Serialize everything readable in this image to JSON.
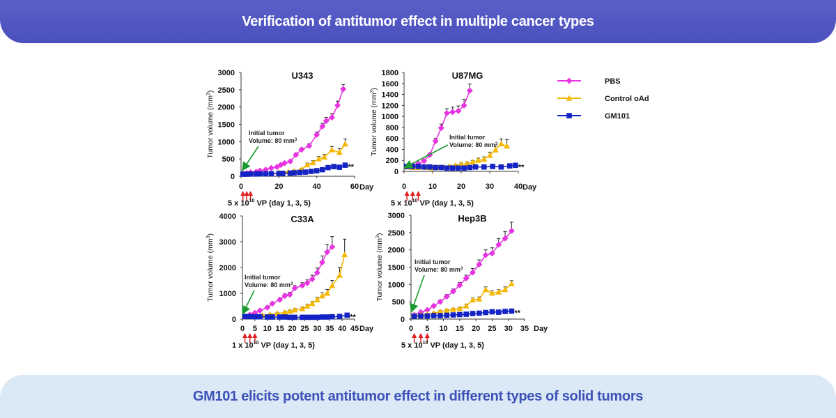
{
  "header": {
    "title": "Verification of antitumor effect in multiple cancer types"
  },
  "footer": {
    "title": "GM101 elicits potent antitumor effect in different types of solid tumors"
  },
  "legend": [
    {
      "name": "PBS",
      "color": "#e635e0",
      "marker": "diamond"
    },
    {
      "name": "Control oAd",
      "color": "#f5b800",
      "marker": "triangle"
    },
    {
      "name": "GM101",
      "color": "#1323c4",
      "marker": "square"
    }
  ],
  "colors": {
    "pbs": "#e635e0",
    "control": "#f5b800",
    "gm101": "#1323c4",
    "arrow": "#e02020",
    "annotation": "#1a9a30"
  },
  "chart_data": [
    {
      "type": "line",
      "title": "U343",
      "ylabel": "Tumor volume (mm3)",
      "xlabel": "Day",
      "ylim": [
        0,
        3000
      ],
      "yticks": [
        0,
        500,
        1000,
        1500,
        2000,
        2500,
        3000
      ],
      "xlim": [
        0,
        60
      ],
      "xticks": [
        0,
        20,
        40,
        60
      ],
      "annotation": {
        "line1": "Initial tumor",
        "line2": "Volume: 80 mm",
        "sup": "3"
      },
      "dosing": {
        "prefix": "5 x 10",
        "sup": "10",
        "suffix": " VP (day 1, 3, 5)",
        "days": [
          1,
          3,
          5
        ]
      },
      "significance": "**",
      "series": [
        {
          "name": "PBS",
          "x": [
            1,
            3,
            5,
            8,
            10,
            13,
            16,
            19,
            21,
            23,
            26,
            29,
            32,
            36,
            40,
            43,
            45,
            48,
            51,
            54
          ],
          "values": [
            80,
            90,
            110,
            130,
            160,
            190,
            240,
            270,
            330,
            380,
            430,
            620,
            770,
            880,
            1200,
            1440,
            1600,
            1700,
            2050,
            2520
          ],
          "err": [
            10,
            10,
            12,
            15,
            18,
            20,
            25,
            25,
            30,
            30,
            35,
            40,
            50,
            60,
            80,
            90,
            100,
            110,
            120,
            130
          ]
        },
        {
          "name": "Control oAd",
          "x": [
            20,
            25,
            28,
            32,
            35,
            38,
            41,
            44,
            48,
            52,
            55
          ],
          "values": [
            110,
            130,
            150,
            200,
            330,
            390,
            500,
            550,
            760,
            690,
            930
          ],
          "err": [
            20,
            20,
            25,
            30,
            50,
            60,
            70,
            80,
            100,
            110,
            150
          ]
        },
        {
          "name": "GM101",
          "x": [
            1,
            3,
            5,
            8,
            10,
            13,
            16,
            20,
            22,
            26,
            28,
            31,
            34,
            37,
            40,
            43,
            46,
            49,
            52,
            55
          ],
          "values": [
            60,
            60,
            65,
            65,
            70,
            70,
            75,
            80,
            85,
            90,
            100,
            110,
            120,
            140,
            160,
            190,
            250,
            280,
            260,
            320
          ],
          "err": [
            8,
            8,
            8,
            8,
            10,
            10,
            10,
            10,
            12,
            12,
            15,
            15,
            18,
            20,
            22,
            25,
            30,
            35,
            30,
            40
          ]
        }
      ]
    },
    {
      "type": "line",
      "title": "U87MG",
      "ylabel": "Tumor volume (mm3)",
      "xlabel": "Day",
      "ylim": [
        0,
        1800
      ],
      "yticks": [
        0,
        200,
        400,
        600,
        800,
        1000,
        1200,
        1400,
        1600,
        1800
      ],
      "xlim": [
        0,
        40
      ],
      "xticks": [
        0,
        10,
        20,
        30,
        40
      ],
      "annotation": {
        "line1": "Initial tumor",
        "line2": "Volume: 80 mm",
        "sup": "3"
      },
      "dosing": {
        "prefix": "5 x 10",
        "sup": "10",
        "suffix": " VP (day 1, 3, 5)",
        "days": [
          1,
          3,
          5
        ]
      },
      "significance": "**",
      "series": [
        {
          "name": "PBS",
          "x": [
            1,
            3,
            5,
            7,
            9,
            11,
            13,
            15,
            17,
            19,
            21,
            23
          ],
          "values": [
            90,
            110,
            140,
            190,
            300,
            550,
            790,
            1060,
            1080,
            1100,
            1200,
            1470
          ],
          "err": [
            15,
            15,
            20,
            25,
            35,
            50,
            70,
            80,
            90,
            90,
            110,
            120
          ]
        },
        {
          "name": "Control oAd",
          "x": [
            1,
            3,
            5,
            8,
            10,
            12,
            14,
            16,
            18,
            20,
            22,
            24,
            26,
            28,
            30,
            32,
            34,
            36
          ],
          "values": [
            80,
            70,
            70,
            70,
            60,
            70,
            80,
            90,
            110,
            130,
            140,
            170,
            200,
            220,
            290,
            390,
            500,
            460
          ],
          "err": [
            15,
            10,
            10,
            10,
            10,
            10,
            15,
            20,
            20,
            25,
            30,
            30,
            40,
            45,
            60,
            70,
            90,
            120
          ]
        },
        {
          "name": "GM101",
          "x": [
            1,
            3,
            5,
            7,
            9,
            11,
            13,
            15,
            17,
            19,
            21,
            23,
            25,
            28,
            31,
            34,
            37,
            39
          ],
          "values": [
            90,
            90,
            90,
            80,
            80,
            70,
            70,
            60,
            60,
            60,
            60,
            70,
            80,
            80,
            90,
            80,
            100,
            110
          ],
          "err": [
            15,
            15,
            15,
            12,
            12,
            10,
            10,
            10,
            10,
            10,
            10,
            12,
            12,
            15,
            15,
            15,
            20,
            20
          ]
        }
      ]
    },
    {
      "type": "line",
      "title": "C33A",
      "ylabel": "Tumor volume (mm3)",
      "xlabel": "Day",
      "ylim": [
        0,
        4000
      ],
      "yticks": [
        0,
        1000,
        2000,
        3000,
        4000
      ],
      "xlim": [
        0,
        45
      ],
      "xticks": [
        0,
        5,
        10,
        15,
        20,
        25,
        30,
        35,
        40,
        45
      ],
      "annotation": {
        "line1": "Initial tumor",
        "line2": "Volume: 80 mm",
        "sup": "3"
      },
      "dosing": {
        "prefix": "1 x 10",
        "sup": "10",
        "suffix": " VP (day 1, 3, 5)",
        "days": [
          1,
          3,
          5
        ]
      },
      "significance": "**",
      "series": [
        {
          "name": "PBS",
          "x": [
            1,
            3,
            5,
            7,
            10,
            12,
            15,
            17,
            19,
            21,
            24,
            26,
            28,
            30,
            32,
            34,
            36
          ],
          "values": [
            100,
            170,
            240,
            330,
            450,
            600,
            750,
            900,
            950,
            1200,
            1300,
            1400,
            1550,
            1800,
            2200,
            2600,
            2800
          ],
          "err": [
            20,
            30,
            30,
            40,
            50,
            60,
            70,
            80,
            90,
            100,
            110,
            120,
            150,
            180,
            250,
            300,
            400
          ]
        },
        {
          "name": "Control oAd",
          "x": [
            1,
            3,
            5,
            8,
            11,
            14,
            17,
            19,
            21,
            24,
            26,
            28,
            30,
            32,
            34,
            36,
            39,
            41
          ],
          "values": [
            100,
            100,
            110,
            150,
            180,
            220,
            260,
            300,
            350,
            400,
            500,
            600,
            750,
            900,
            1000,
            1300,
            1700,
            2500
          ],
          "err": [
            15,
            15,
            15,
            20,
            30,
            30,
            40,
            50,
            60,
            60,
            70,
            80,
            100,
            120,
            150,
            200,
            300,
            600
          ]
        },
        {
          "name": "GM101",
          "x": [
            1,
            3,
            5,
            7,
            10,
            12,
            15,
            17,
            19,
            21,
            24,
            26,
            28,
            30,
            32,
            34,
            36,
            39,
            42
          ],
          "values": [
            100,
            100,
            90,
            90,
            80,
            80,
            80,
            80,
            70,
            70,
            70,
            70,
            70,
            70,
            80,
            80,
            90,
            100,
            150
          ],
          "err": [
            15,
            15,
            15,
            15,
            12,
            12,
            12,
            12,
            10,
            10,
            10,
            10,
            10,
            10,
            12,
            12,
            15,
            20,
            25
          ]
        }
      ]
    },
    {
      "type": "line",
      "title": "Hep3B",
      "ylabel": "Tumor volume (mm3)",
      "xlabel": "Day",
      "ylim": [
        0,
        3000
      ],
      "yticks": [
        0,
        500,
        1000,
        1500,
        2000,
        2500,
        3000
      ],
      "xlim": [
        0,
        35
      ],
      "xticks": [
        0,
        5,
        10,
        15,
        20,
        25,
        30,
        35
      ],
      "annotation": {
        "line1": "Initial tumor",
        "line2": "Volume: 80 mm",
        "sup": "3"
      },
      "dosing": {
        "prefix": "5 x 10",
        "sup": "10",
        "suffix": " VP (day 1, 3, 5)",
        "days": [
          1,
          3,
          5
        ]
      },
      "significance": "**",
      "series": [
        {
          "name": "PBS",
          "x": [
            1,
            3,
            5,
            7,
            9,
            11,
            13,
            15,
            17,
            19,
            21,
            23,
            25,
            27,
            29,
            31
          ],
          "values": [
            120,
            200,
            260,
            380,
            500,
            650,
            800,
            980,
            1180,
            1350,
            1580,
            1850,
            1900,
            2150,
            2330,
            2550
          ],
          "err": [
            20,
            25,
            30,
            40,
            50,
            60,
            70,
            80,
            90,
            110,
            130,
            150,
            160,
            180,
            200,
            250
          ]
        },
        {
          "name": "Control oAd",
          "x": [
            1,
            3,
            5,
            7,
            9,
            11,
            13,
            15,
            17,
            19,
            21,
            23,
            25,
            27,
            29,
            31
          ],
          "values": [
            100,
            120,
            150,
            170,
            220,
            250,
            280,
            300,
            380,
            550,
            580,
            850,
            750,
            780,
            850,
            1020
          ],
          "err": [
            15,
            20,
            20,
            25,
            30,
            30,
            35,
            40,
            45,
            60,
            60,
            80,
            70,
            70,
            80,
            90
          ]
        },
        {
          "name": "GM101",
          "x": [
            1,
            3,
            5,
            7,
            9,
            11,
            13,
            15,
            17,
            19,
            21,
            23,
            25,
            27,
            29,
            31
          ],
          "values": [
            80,
            90,
            90,
            100,
            100,
            110,
            120,
            130,
            140,
            160,
            170,
            190,
            210,
            200,
            220,
            230
          ],
          "err": [
            10,
            10,
            12,
            12,
            12,
            15,
            15,
            15,
            18,
            18,
            20,
            20,
            22,
            22,
            25,
            25
          ]
        }
      ]
    }
  ]
}
